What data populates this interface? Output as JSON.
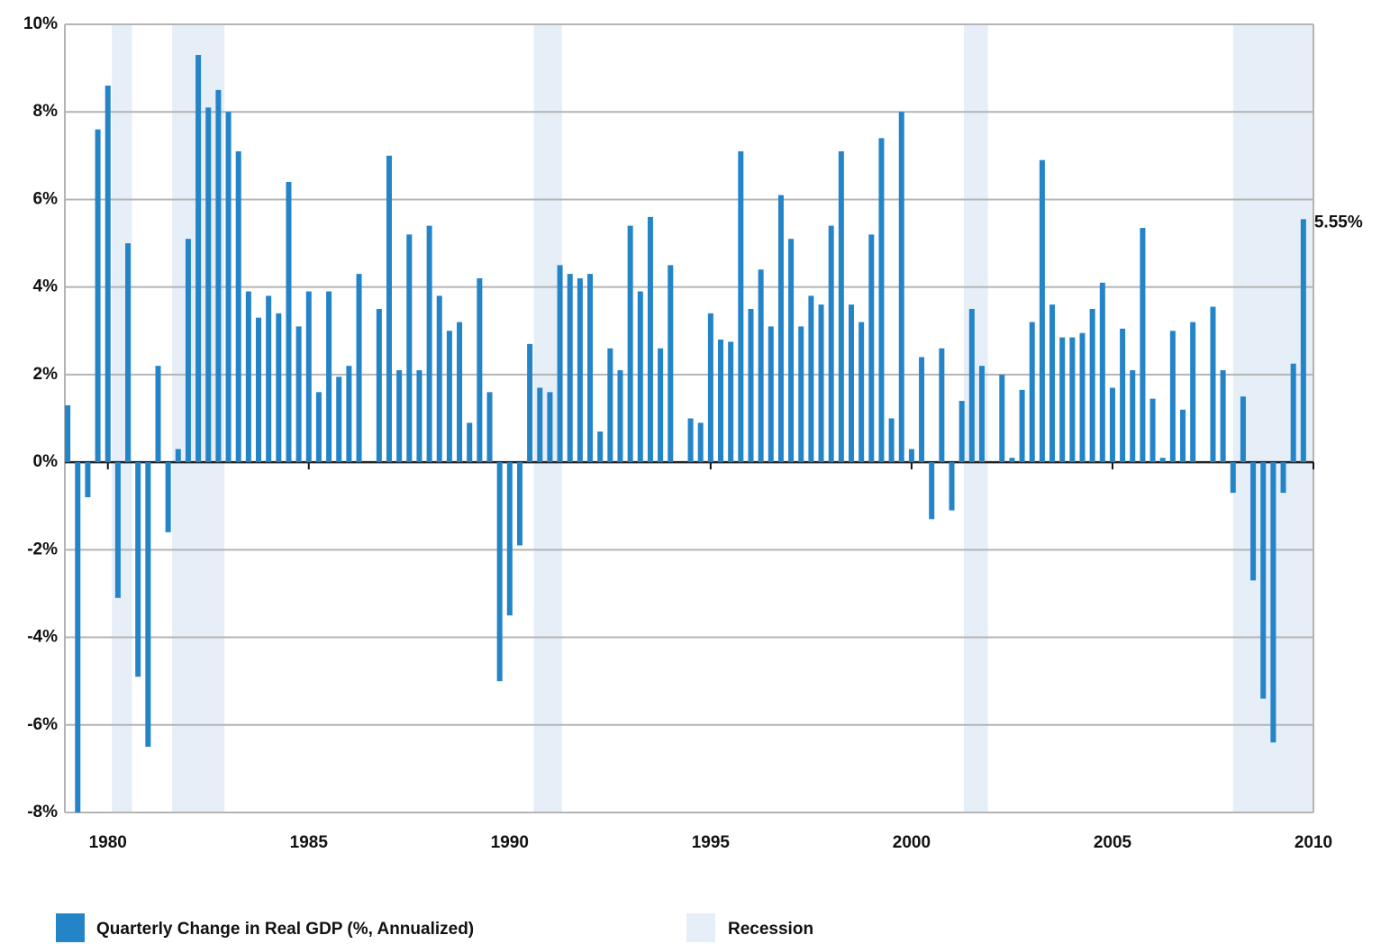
{
  "chart_data": {
    "type": "bar",
    "series": [
      {
        "name": "Quarterly Change in Real GDP (%, Annualized)",
        "color": "#2484c8",
        "values": [
          1.3,
          -8,
          -0.8,
          7.6,
          8.6,
          -3.1,
          5.0,
          -4.9,
          -6.5,
          2.2,
          -1.6,
          0.3,
          5.1,
          9.3,
          8.1,
          8.5,
          8.0,
          7.1,
          3.9,
          3.3,
          3.8,
          3.4,
          6.4,
          3.1,
          3.9,
          1.6,
          3.9,
          1.95,
          2.2,
          4.3,
          3.5,
          7.0,
          2.1,
          5.2,
          2.1,
          5.4,
          3.8,
          3.0,
          3.2,
          0.9,
          4.2,
          1.6,
          -5.0,
          -3.5,
          -1.9,
          2.7,
          1.7,
          1.6,
          4.5,
          4.3,
          4.2,
          4.3,
          0.7,
          2.6,
          2.1,
          5.4,
          3.9,
          5.6,
          2.6,
          4.5,
          1.0,
          0.9,
          3.4,
          2.8,
          2.75,
          7.1,
          3.5,
          4.4,
          3.1,
          6.1,
          5.1,
          3.1,
          3.8,
          3.6,
          5.4,
          7.1,
          3.6,
          3.2,
          5.2,
          7.4,
          1.0,
          8.0,
          0.3,
          2.4,
          -1.3,
          2.6,
          -1.1,
          1.4,
          3.5,
          2.2,
          2.0,
          0.1,
          1.65,
          3.2,
          6.9,
          3.6,
          2.85,
          2.85,
          2.95,
          3.5,
          4.1,
          1.7,
          3.05,
          2.1,
          5.35,
          1.45,
          0.1,
          3.0,
          1.2,
          3.2,
          3.55,
          2.1,
          -0.7,
          1.5,
          -2.7,
          -5.4,
          -6.4,
          -0.7,
          2.25,
          5.55
        ],
        "value_labels": [
          null,
          null,
          null,
          null,
          null,
          null,
          null,
          null,
          null,
          null,
          null,
          null,
          null,
          null,
          null,
          null,
          null,
          null,
          null,
          null,
          null,
          null,
          null,
          null,
          null,
          null,
          null,
          null,
          null,
          null,
          null,
          null,
          null,
          null,
          null,
          null,
          null,
          null,
          null,
          null,
          null,
          null,
          null,
          null,
          null,
          null,
          null,
          null,
          null,
          null,
          null,
          null,
          null,
          null,
          null,
          null,
          null,
          null,
          null,
          null,
          null,
          null,
          null,
          null,
          null,
          null,
          null,
          null,
          null,
          null,
          null,
          null,
          null,
          null,
          null,
          null,
          null,
          null,
          null,
          null,
          null,
          null,
          null,
          null,
          null,
          null,
          null,
          null,
          null,
          null,
          null,
          null,
          null,
          null,
          null,
          null,
          null,
          null,
          null,
          null,
          null,
          null,
          null,
          null,
          null,
          null,
          null,
          null,
          null,
          null,
          null,
          null,
          null,
          null,
          null,
          null,
          null,
          null,
          null,
          "5.55%"
        ]
      }
    ],
    "x": [
      1979,
      1979.25,
      1979.5,
      1979.75,
      1980,
      1980.25,
      1980.5,
      1980.75,
      1981,
      1981.25,
      1981.5,
      1981.75,
      1982,
      1982.25,
      1982.5,
      1982.75,
      1983,
      1983.25,
      1983.5,
      1983.75,
      1984,
      1984.25,
      1984.5,
      1984.75,
      1985,
      1985.25,
      1985.5,
      1985.75,
      1986,
      1986.25,
      1986.75,
      1987,
      1987.25,
      1987.5,
      1987.75,
      1988,
      1988.25,
      1988.5,
      1988.75,
      1989,
      1989.25,
      1989.5,
      1989.75,
      1990,
      1990.25,
      1990.5,
      1990.75,
      1991,
      1991.25,
      1991.5,
      1991.75,
      1992,
      1992.25,
      1992.5,
      1992.75,
      1993,
      1993.25,
      1993.5,
      1993.75,
      1994,
      1994.5,
      1994.75,
      1995,
      1995.25,
      1995.5,
      1995.75,
      1996,
      1996.25,
      1996.5,
      1996.75,
      1997,
      1997.25,
      1997.5,
      1997.75,
      1998,
      1998.25,
      1998.5,
      1998.75,
      1999,
      1999.25,
      1999.5,
      1999.75,
      2000,
      2000.25,
      2000.5,
      2000.75,
      2001,
      2001.25,
      2001.5,
      2001.75,
      2002.25,
      2002.5,
      2002.75,
      2003,
      2003.25,
      2003.5,
      2003.75,
      2004,
      2004.25,
      2004.5,
      2004.75,
      2005,
      2005.25,
      2005.5,
      2005.75,
      2006,
      2006.25,
      2006.5,
      2006.75,
      2007,
      2007.5,
      2007.75,
      2008,
      2008.25,
      2008.5,
      2008.75,
      2009,
      2009.25,
      2009.5,
      2009.75
    ],
    "recessions": [
      [
        1980.1,
        1980.6
      ],
      [
        1981.6,
        1982.9
      ],
      [
        1990.6,
        1991.3
      ],
      [
        2001.3,
        2001.9
      ],
      [
        2008.0,
        2010
      ]
    ],
    "recession_color": "#e6eef8",
    "recession_label": "Recession",
    "xlim": [
      1978.93,
      2010
    ],
    "xticks": [
      1980,
      1985,
      1990,
      1995,
      2000,
      2005,
      2010
    ],
    "ylim": [
      -8,
      10
    ],
    "yticks": [
      {
        "value": -8,
        "label": "-8%"
      },
      {
        "value": -6,
        "label": "-6%"
      },
      {
        "value": -4,
        "label": "-4%"
      },
      {
        "value": -2,
        "label": "-2%"
      },
      {
        "value": 0,
        "label": "0%"
      },
      {
        "value": 2,
        "label": "2%"
      },
      {
        "value": 4,
        "label": "4%"
      },
      {
        "value": 6,
        "label": "6%"
      },
      {
        "value": 8,
        "label": "8%"
      },
      {
        "value": 10,
        "label": "10%"
      }
    ],
    "grid": true
  }
}
